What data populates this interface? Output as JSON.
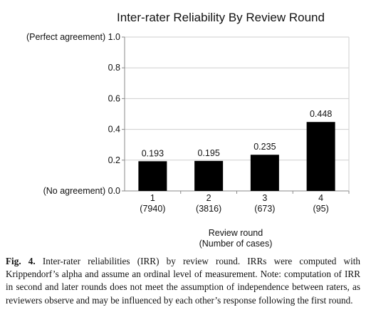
{
  "chart_data": {
    "type": "bar",
    "title": "Inter-rater Reliability By Review Round",
    "xlabel": [
      "Review round",
      "(Number of cases)"
    ],
    "ylabel": "",
    "ylim": [
      0,
      1.0
    ],
    "yticks": [
      {
        "value": 0.0,
        "label": "(No agreement) 0.0"
      },
      {
        "value": 0.2,
        "label": "0.2"
      },
      {
        "value": 0.4,
        "label": "0.4"
      },
      {
        "value": 0.6,
        "label": "0.6"
      },
      {
        "value": 0.8,
        "label": "0.8"
      },
      {
        "value": 1.0,
        "label": "(Perfect agreement) 1.0"
      }
    ],
    "categories": [
      "1",
      "2",
      "3",
      "4"
    ],
    "category_sublabels": [
      "(7940)",
      "(3816)",
      "(673)",
      "(95)"
    ],
    "values": [
      0.193,
      0.195,
      0.235,
      0.448
    ],
    "value_labels": [
      "0.193",
      "0.195",
      "0.235",
      "0.448"
    ],
    "grid": true,
    "legend": "none",
    "bar_color": "#000000",
    "grid_color": "#cfcfcf"
  },
  "caption": {
    "label": "Fig. 4.",
    "text": "Inter-rater reliabilities (IRR) by review round. IRRs were computed with Krippendorf’s alpha and assume an ordinal level of measurement. Note: computation of IRR in second and later rounds does not meet the assumption of independence between raters, as reviewers observe and may be influenced by each other’s response following the first round."
  }
}
